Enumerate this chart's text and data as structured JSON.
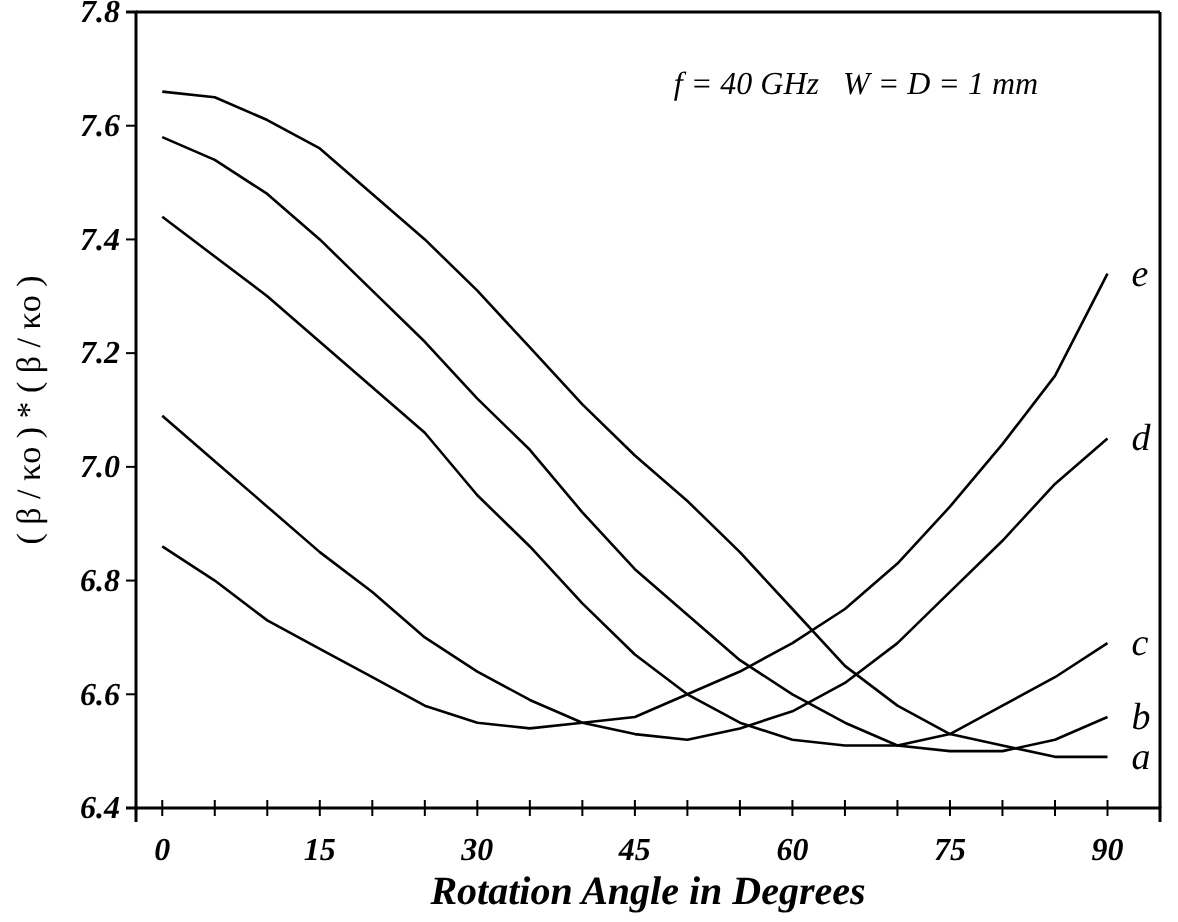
{
  "chart_data": {
    "type": "line",
    "xlabel": "Rotation Angle in Degrees",
    "ylabel": "( β / κo ) * ( β / κo )",
    "annotations": [
      {
        "text": "f = 40 GHz   W = D = 1 mm"
      }
    ],
    "x": [
      0,
      5,
      10,
      15,
      20,
      25,
      30,
      35,
      40,
      45,
      50,
      55,
      60,
      65,
      70,
      75,
      80,
      85,
      90
    ],
    "xlim": [
      -2.5,
      95
    ],
    "xticks": [
      0,
      {
        "value": 5,
        "label": null
      },
      {
        "value": 10,
        "label": null
      },
      15,
      {
        "value": 20,
        "label": null
      },
      {
        "value": 25,
        "label": null
      },
      30,
      {
        "value": 35,
        "label": null
      },
      {
        "value": 40,
        "label": null
      },
      45,
      {
        "value": 50,
        "label": null
      },
      {
        "value": 55,
        "label": null
      },
      60,
      {
        "value": 65,
        "label": null
      },
      {
        "value": 70,
        "label": null
      },
      75,
      {
        "value": 80,
        "label": null
      },
      {
        "value": 85,
        "label": null
      },
      90
    ],
    "ylim": [
      6.4,
      7.8
    ],
    "yticks": [
      6.4,
      6.6,
      6.8,
      {
        "value": 7,
        "label": "7.0"
      },
      7.2,
      7.4,
      7.6,
      7.8
    ],
    "grid": false,
    "legend": false,
    "marker": "none",
    "line_style": "solid",
    "series": [
      {
        "name": "a",
        "color": "#000000",
        "values": [
          7.66,
          7.65,
          7.61,
          7.56,
          7.48,
          7.4,
          7.31,
          7.21,
          7.11,
          7.02,
          6.94,
          6.85,
          6.75,
          6.65,
          6.58,
          6.53,
          6.51,
          6.49,
          6.49
        ]
      },
      {
        "name": "b",
        "color": "#000000",
        "values": [
          7.58,
          7.54,
          7.48,
          7.4,
          7.31,
          7.22,
          7.12,
          7.03,
          6.92,
          6.82,
          6.74,
          6.66,
          6.6,
          6.55,
          6.51,
          6.5,
          6.5,
          6.52,
          6.56
        ]
      },
      {
        "name": "c",
        "color": "#000000",
        "values": [
          7.44,
          7.37,
          7.3,
          7.22,
          7.14,
          7.06,
          6.95,
          6.86,
          6.76,
          6.67,
          6.6,
          6.55,
          6.52,
          6.51,
          6.51,
          6.53,
          6.58,
          6.63,
          6.69
        ]
      },
      {
        "name": "d",
        "color": "#000000",
        "values": [
          7.09,
          7.01,
          6.93,
          6.85,
          6.78,
          6.7,
          6.64,
          6.59,
          6.55,
          6.53,
          6.52,
          6.54,
          6.57,
          6.62,
          6.69,
          6.78,
          6.87,
          6.97,
          7.05
        ]
      },
      {
        "name": "e",
        "color": "#000000",
        "values": [
          6.86,
          6.8,
          6.73,
          6.68,
          6.63,
          6.58,
          6.55,
          6.54,
          6.55,
          6.56,
          6.6,
          6.64,
          6.69,
          6.75,
          6.83,
          6.93,
          7.04,
          7.16,
          7.34
        ]
      }
    ]
  }
}
